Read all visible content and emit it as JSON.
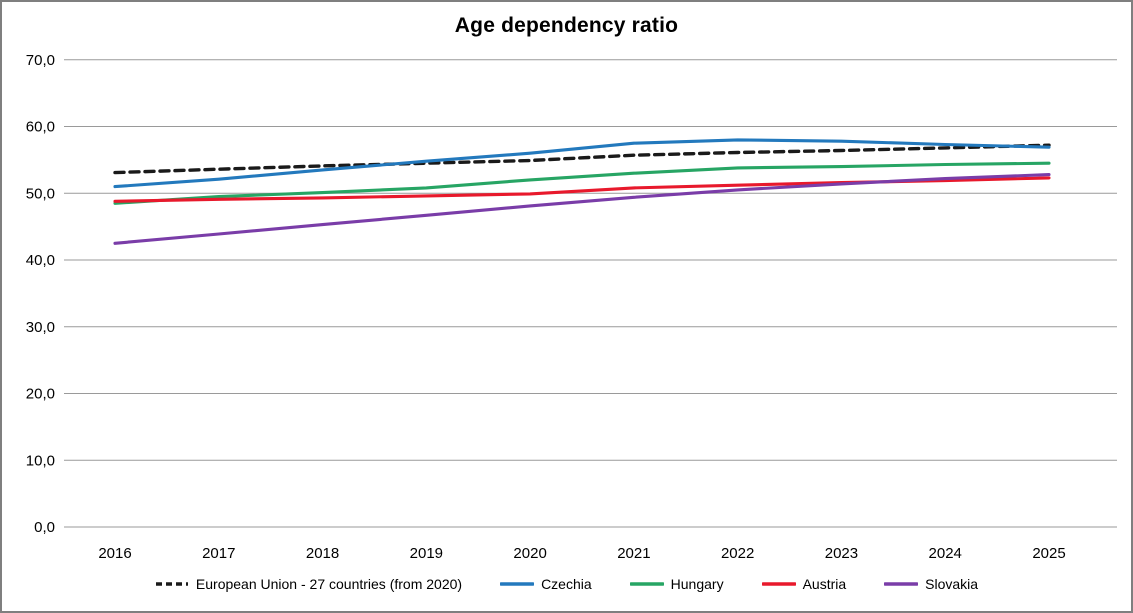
{
  "title": "Age dependency ratio",
  "chart_data": {
    "type": "line",
    "title": "Age dependency ratio",
    "categories": [
      "2016",
      "2017",
      "2018",
      "2019",
      "2020",
      "2021",
      "2022",
      "2023",
      "2024",
      "2025"
    ],
    "series": [
      {
        "name": "European Union - 27 countries (from 2020)",
        "color": "#1a1a1a",
        "dashed": true,
        "values": [
          53.1,
          53.6,
          54.1,
          54.5,
          54.9,
          55.7,
          56.1,
          56.4,
          56.8,
          57.2
        ]
      },
      {
        "name": "Czechia",
        "color": "#2379bd",
        "dashed": false,
        "values": [
          51.0,
          52.1,
          53.5,
          54.8,
          56.0,
          57.5,
          58.0,
          57.8,
          57.3,
          56.9
        ]
      },
      {
        "name": "Hungary",
        "color": "#27a564",
        "dashed": false,
        "values": [
          48.5,
          49.5,
          50.1,
          50.8,
          52.0,
          53.0,
          53.8,
          54.0,
          54.3,
          54.5
        ]
      },
      {
        "name": "Austria",
        "color": "#e8192c",
        "dashed": false,
        "values": [
          48.8,
          49.1,
          49.3,
          49.6,
          49.9,
          50.8,
          51.2,
          51.6,
          51.9,
          52.3
        ]
      },
      {
        "name": "Slovakia",
        "color": "#7a3da8",
        "dashed": false,
        "values": [
          42.5,
          43.9,
          45.3,
          46.7,
          48.1,
          49.4,
          50.5,
          51.4,
          52.2,
          52.8
        ]
      }
    ],
    "ylim": [
      0,
      70
    ],
    "ytick_labels": [
      "0,0",
      "10,0",
      "20,0",
      "30,0",
      "40,0",
      "50,0",
      "60,0",
      "70,0"
    ],
    "xlabel": "",
    "ylabel": "",
    "grid": true,
    "gridline_color": "#9a9a9a",
    "legend_position": "bottom"
  }
}
